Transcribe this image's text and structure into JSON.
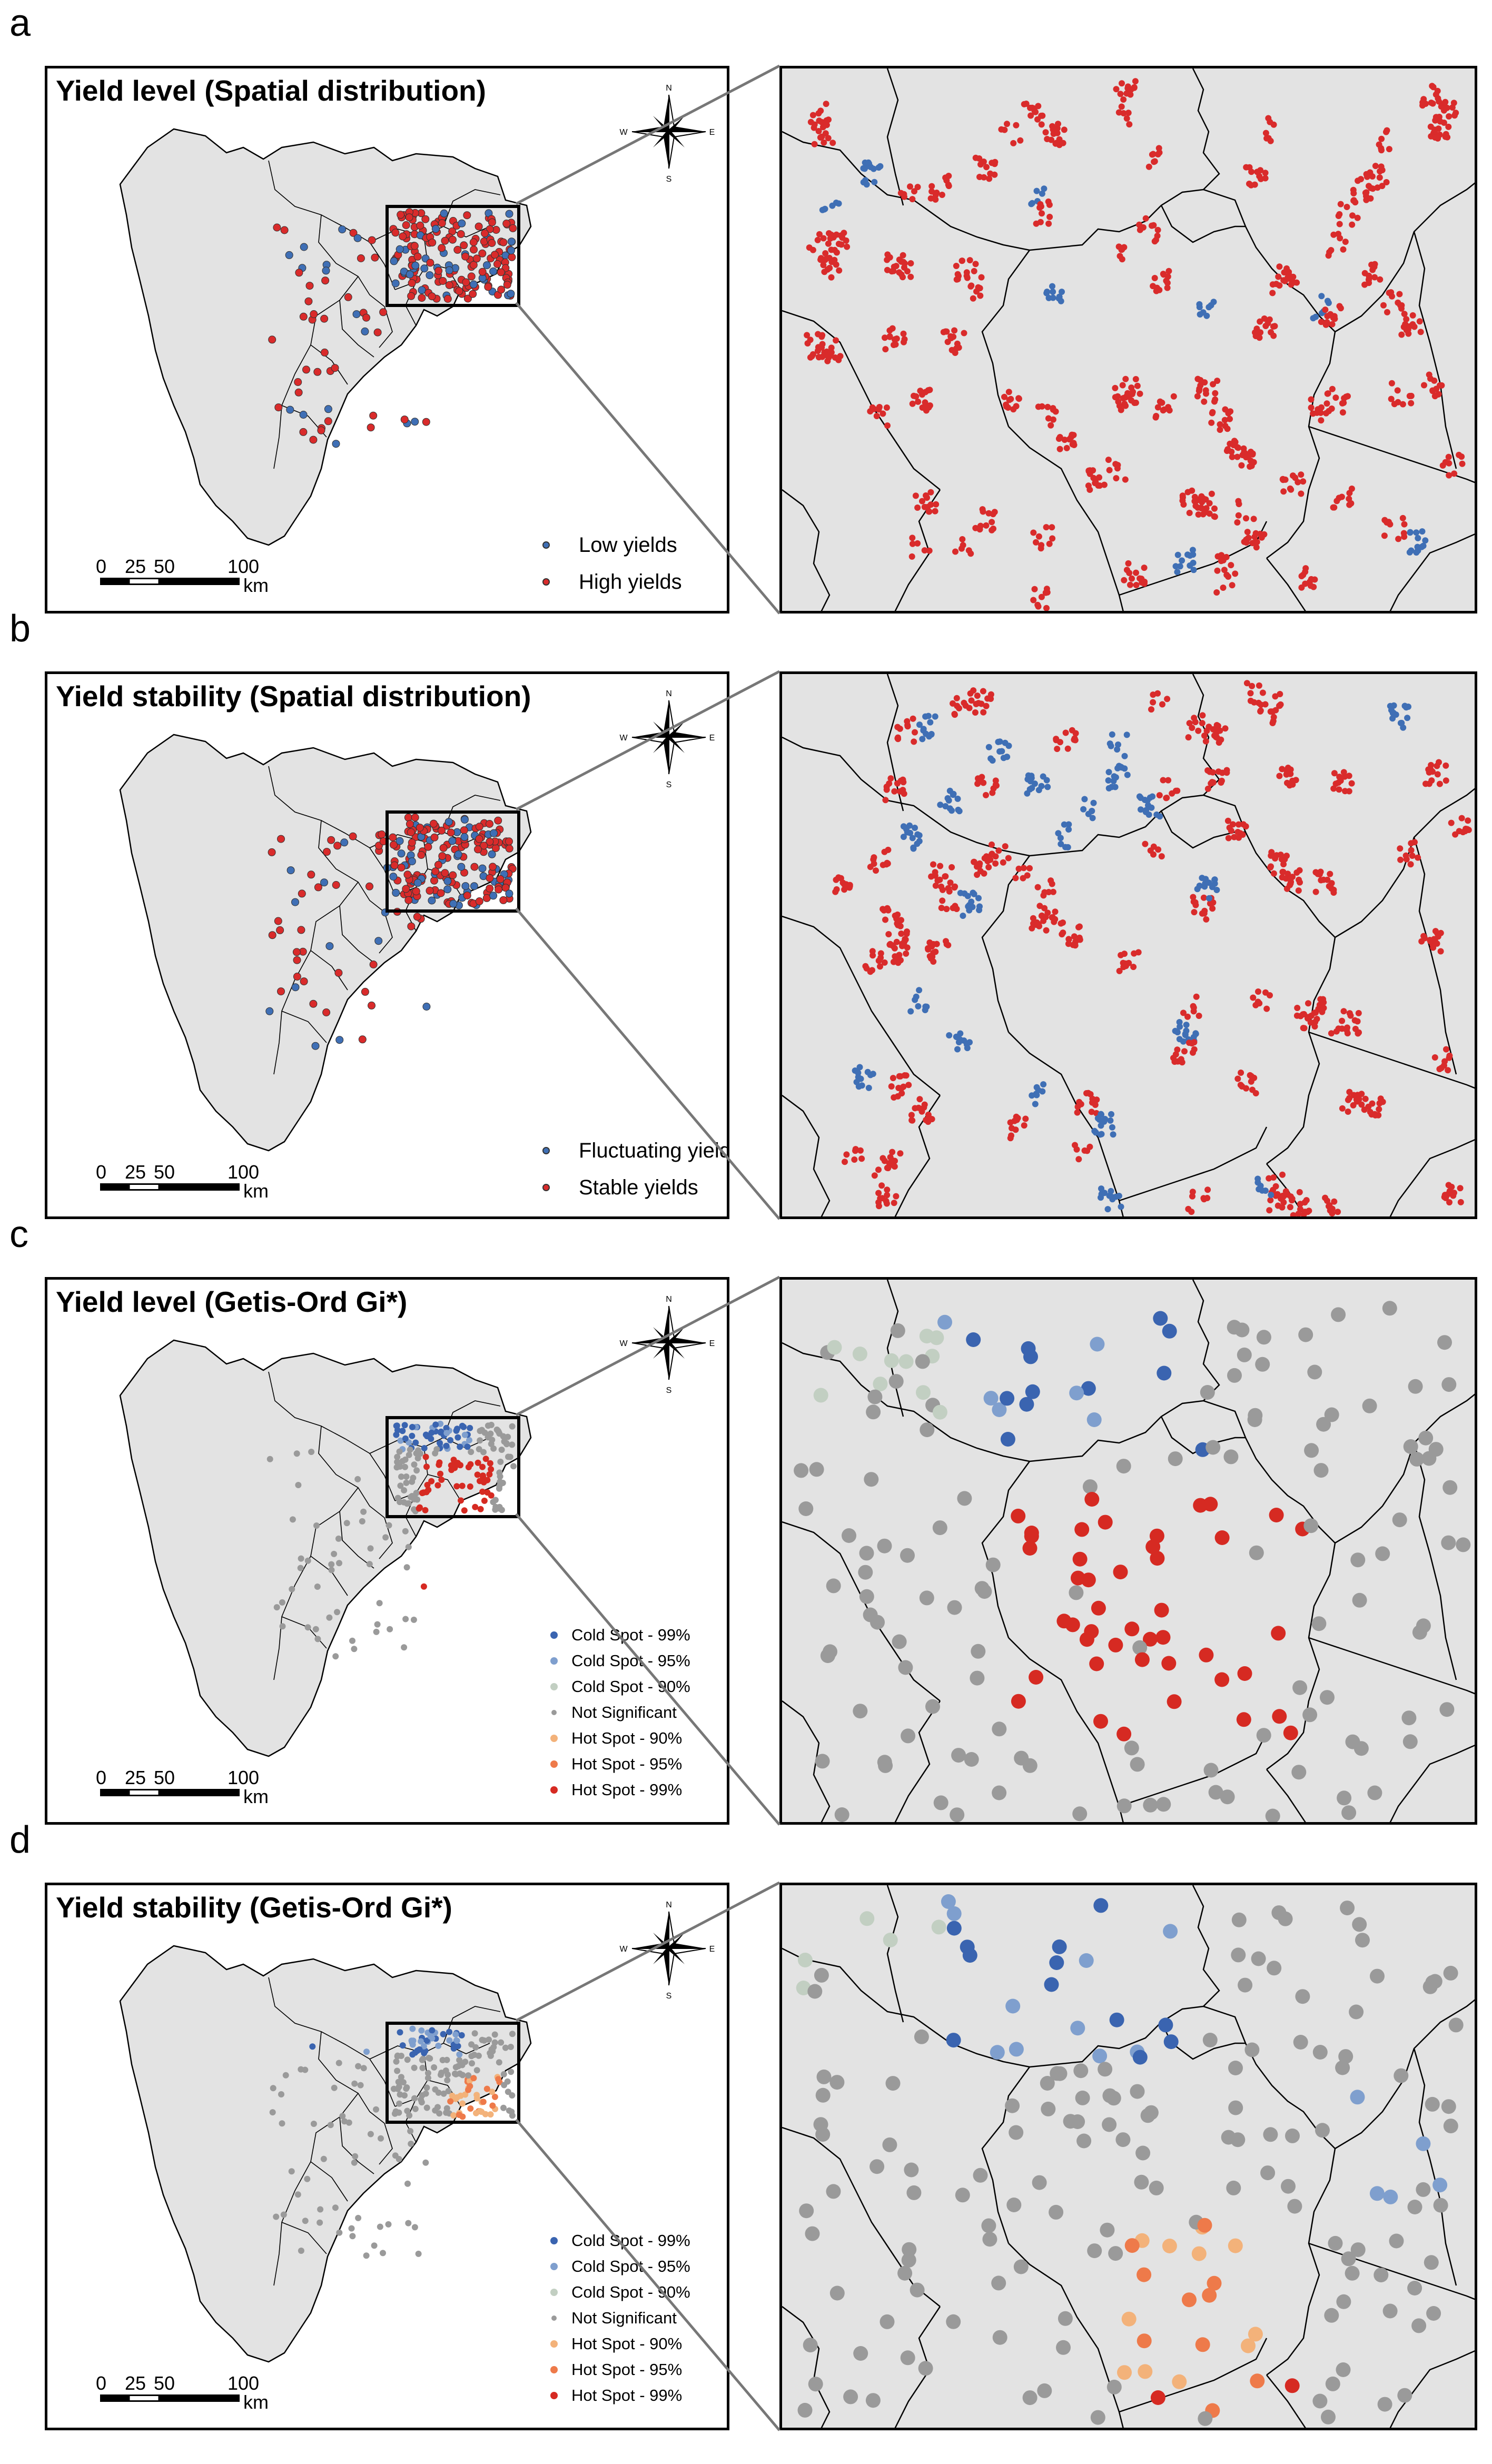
{
  "panels": [
    {
      "letter": "a",
      "title": "Yield level (Spatial distribution)",
      "legend_type": "distribution",
      "legend": [
        {
          "label": "Low yields",
          "color": "#3f6fb5"
        },
        {
          "label": "High yields",
          "color": "#d92b2b"
        }
      ]
    },
    {
      "letter": "b",
      "title": "Yield stability (Spatial distribution)",
      "legend_type": "distribution",
      "legend": [
        {
          "label": "Fluctuating yields",
          "color": "#3f6fb5"
        },
        {
          "label": "Stable yields",
          "color": "#d92b2b"
        }
      ]
    },
    {
      "letter": "c",
      "title": "Yield level (Getis-Ord Gi*)",
      "legend_type": "hotspot",
      "legend": [
        {
          "label": "Cold Spot - 99%",
          "color": "#3a64b0"
        },
        {
          "label": "Cold Spot - 95%",
          "color": "#7f9fce"
        },
        {
          "label": "Cold Spot - 90%",
          "color": "#c2cfc2"
        },
        {
          "label": "Not Significant",
          "color": "#9a9a9a"
        },
        {
          "label": "Hot Spot - 90%",
          "color": "#f3b27a"
        },
        {
          "label": "Hot Spot - 95%",
          "color": "#ee7a4a"
        },
        {
          "label": "Hot Spot - 99%",
          "color": "#d62a22"
        }
      ]
    },
    {
      "letter": "d",
      "title": "Yield stability (Getis-Ord Gi*)",
      "legend_type": "hotspot",
      "legend": [
        {
          "label": "Cold Spot - 99%",
          "color": "#3a64b0"
        },
        {
          "label": "Cold Spot - 95%",
          "color": "#7f9fce"
        },
        {
          "label": "Cold Spot - 90%",
          "color": "#c2cfc2"
        },
        {
          "label": "Not Significant",
          "color": "#9a9a9a"
        },
        {
          "label": "Hot Spot - 90%",
          "color": "#f3b27a"
        },
        {
          "label": "Hot Spot - 95%",
          "color": "#ee7a4a"
        },
        {
          "label": "Hot Spot - 99%",
          "color": "#d62a22"
        }
      ]
    }
  ],
  "scalebar": {
    "ticks": [
      "0",
      "25",
      "50",
      "100"
    ],
    "unit": "km"
  },
  "north_arrow": {
    "n": "N",
    "s": "S",
    "e": "E",
    "w": "W"
  },
  "colors": {
    "land": "#e3e3e3",
    "boundary": "#000000",
    "blue": "#3f6fb5",
    "red": "#d92b2b",
    "grey": "#9a9a9a",
    "connector": "#777777"
  }
}
